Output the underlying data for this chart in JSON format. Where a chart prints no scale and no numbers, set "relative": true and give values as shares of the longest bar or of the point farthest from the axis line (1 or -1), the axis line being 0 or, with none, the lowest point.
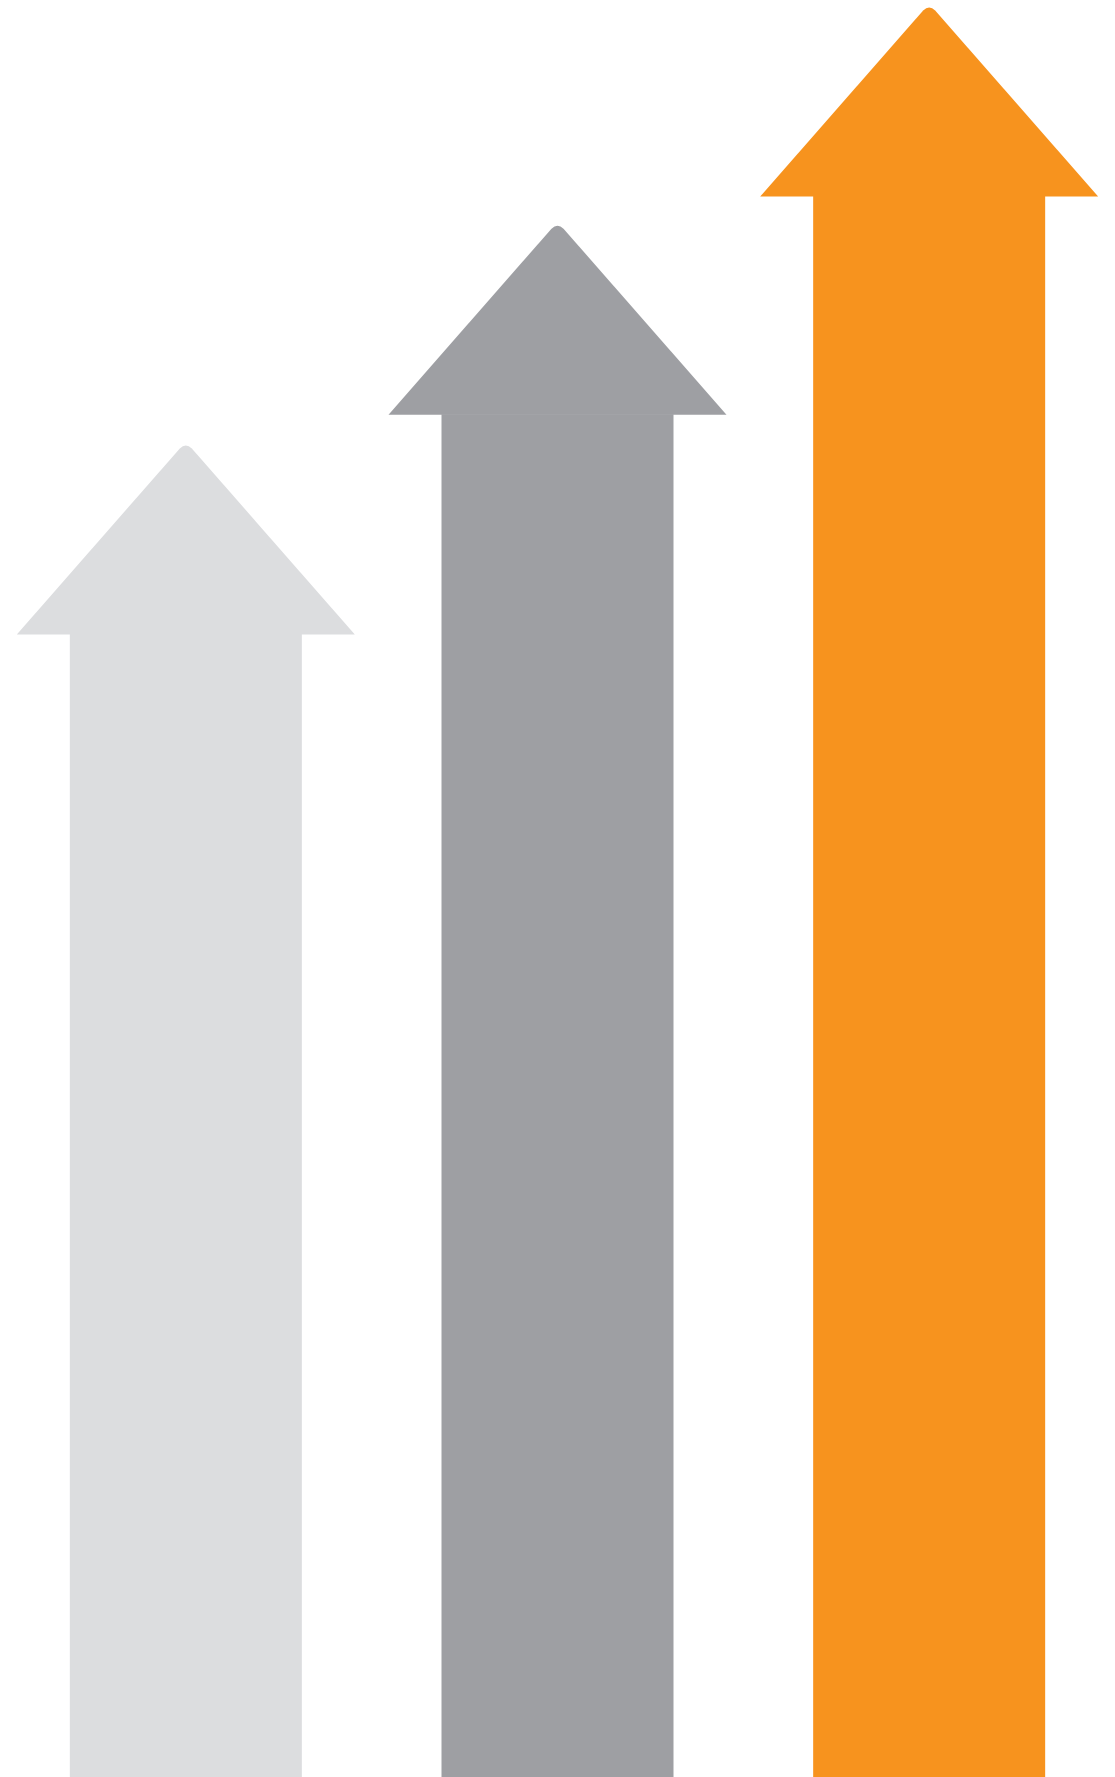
{
  "chart_data": {
    "type": "bar",
    "relative": true,
    "categories": [
      null,
      null,
      null
    ],
    "values": [
      0.723,
      0.862,
      1
    ],
    "colors": [
      "#dcdddf",
      "#9e9fa3",
      "#f7931e"
    ]
  }
}
